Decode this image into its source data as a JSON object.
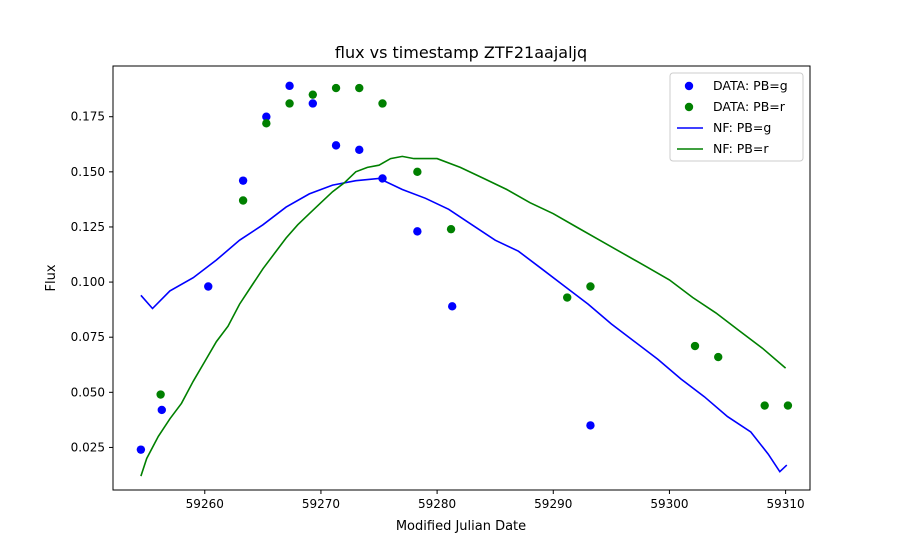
{
  "chart_data": {
    "type": "scatter",
    "title": "flux vs timestamp ZTF21aajaljq",
    "xlabel": "Modified Julian Date",
    "ylabel": "Flux",
    "xlim": [
      59252.1,
      59312.1
    ],
    "ylim": [
      0.0057,
      0.198
    ],
    "xticks": [
      59260,
      59270,
      59280,
      59290,
      59300,
      59310
    ],
    "yticks": [
      0.025,
      0.05,
      0.075,
      0.1,
      0.125,
      0.15,
      0.175
    ],
    "ytick_labels": [
      "0.025",
      "0.050",
      "0.075",
      "0.100",
      "0.125",
      "0.150",
      "0.175"
    ],
    "grid": false,
    "legend_position": "top-right",
    "series": [
      {
        "name": "DATA: PB=g",
        "kind": "scatter",
        "color": "#0000ff",
        "x": [
          59254.5,
          59256.3,
          59260.3,
          59263.3,
          59265.3,
          59267.3,
          59269.3,
          59271.3,
          59273.3,
          59275.3,
          59278.3,
          59281.3,
          59293.2
        ],
        "y": [
          0.024,
          0.042,
          0.098,
          0.146,
          0.175,
          0.189,
          0.181,
          0.162,
          0.16,
          0.147,
          0.123,
          0.089,
          0.035
        ]
      },
      {
        "name": "DATA: PB=r",
        "kind": "scatter",
        "color": "#008000",
        "x": [
          59256.2,
          59263.3,
          59265.3,
          59267.3,
          59269.3,
          59271.3,
          59273.3,
          59275.3,
          59278.3,
          59281.2,
          59291.2,
          59293.2,
          59302.2,
          59304.2,
          59308.2,
          59310.2
        ],
        "y": [
          0.049,
          0.137,
          0.172,
          0.181,
          0.185,
          0.188,
          0.188,
          0.181,
          0.15,
          0.124,
          0.093,
          0.098,
          0.071,
          0.066,
          0.044,
          0.044
        ]
      },
      {
        "name": "NF: PB=g",
        "kind": "line",
        "color": "#0000ff",
        "x": [
          59254.5,
          59255.5,
          59257.0,
          59259.0,
          59261.0,
          59263.0,
          59265.0,
          59267.0,
          59269.0,
          59271.0,
          59273.0,
          59275.0,
          59277.0,
          59279.0,
          59281.0,
          59283.0,
          59285.0,
          59287.0,
          59289.0,
          59291.0,
          59293.0,
          59295.0,
          59297.0,
          59299.0,
          59301.0,
          59303.0,
          59305.0,
          59307.0,
          59308.5,
          59309.5,
          59310.1
        ],
        "y": [
          0.094,
          0.088,
          0.096,
          0.102,
          0.11,
          0.119,
          0.126,
          0.134,
          0.14,
          0.144,
          0.146,
          0.147,
          0.142,
          0.138,
          0.133,
          0.126,
          0.119,
          0.114,
          0.106,
          0.098,
          0.09,
          0.081,
          0.073,
          0.065,
          0.056,
          0.048,
          0.039,
          0.032,
          0.022,
          0.014,
          0.017
        ]
      },
      {
        "name": "NF: PB=r",
        "kind": "line",
        "color": "#008000",
        "x": [
          59254.5,
          59255.0,
          59256.0,
          59257.0,
          59258.0,
          59259.0,
          59260.0,
          59261.0,
          59262.0,
          59263.0,
          59264.0,
          59265.0,
          59266.0,
          59267.0,
          59268.0,
          59269.0,
          59270.0,
          59271.0,
          59272.0,
          59273.0,
          59274.0,
          59275.0,
          59276.0,
          59277.0,
          59278.0,
          59280.0,
          59282.0,
          59284.0,
          59286.0,
          59288.0,
          59290.0,
          59292.0,
          59294.0,
          59296.0,
          59298.0,
          59300.0,
          59302.0,
          59304.0,
          59306.0,
          59308.0,
          59310.0
        ],
        "y": [
          0.012,
          0.02,
          0.03,
          0.038,
          0.045,
          0.055,
          0.064,
          0.073,
          0.08,
          0.09,
          0.098,
          0.106,
          0.113,
          0.12,
          0.126,
          0.131,
          0.136,
          0.141,
          0.145,
          0.15,
          0.152,
          0.153,
          0.156,
          0.157,
          0.156,
          0.156,
          0.152,
          0.147,
          0.142,
          0.136,
          0.131,
          0.125,
          0.119,
          0.113,
          0.107,
          0.101,
          0.093,
          0.086,
          0.078,
          0.07,
          0.061
        ]
      }
    ]
  }
}
